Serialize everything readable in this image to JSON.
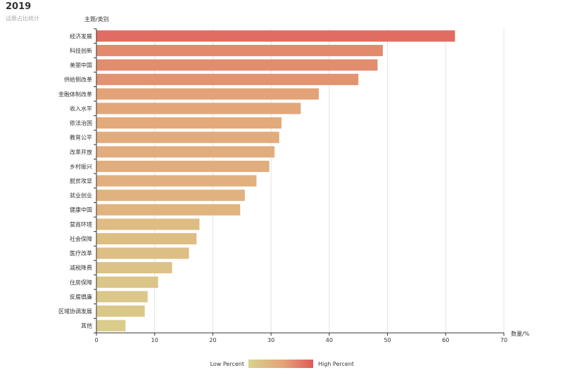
{
  "title": "2019",
  "subtitle": "话题占比统计",
  "chart_data": {
    "type": "bar",
    "orientation": "horizontal",
    "categories": [
      "经济发展",
      "科技创新",
      "美丽中国",
      "供给侧改革",
      "金融体制改革",
      "收入水平",
      "依法治国",
      "教育公平",
      "改革开放",
      "乡村振兴",
      "脱贫攻坚",
      "就业创业",
      "健康中国",
      "营商环境",
      "社会保障",
      "医疗改革",
      "减税降费",
      "住房保障",
      "反腐倡廉",
      "区域协调发展",
      "其他"
    ],
    "values": [
      61.6,
      49.2,
      48.3,
      45.0,
      38.2,
      35.1,
      31.8,
      31.4,
      30.6,
      29.7,
      27.5,
      25.5,
      24.7,
      17.7,
      17.2,
      15.9,
      13.0,
      10.6,
      8.8,
      8.3,
      5.0
    ],
    "xlabel": "数量/%",
    "ylabel": "主题/类别",
    "xlim": [
      0,
      70
    ],
    "xticks": [
      "0",
      "10",
      "20",
      "30",
      "40",
      "50",
      "60",
      "70"
    ],
    "grid": true,
    "color_scale": {
      "low": "#d8d28e",
      "mid": "#e4a277",
      "high": "#e05a5a",
      "min": 0,
      "max": 70
    },
    "legend": {
      "low_label": "Low Percent",
      "high_label": "High Percent",
      "placement": "bottom-center"
    }
  }
}
